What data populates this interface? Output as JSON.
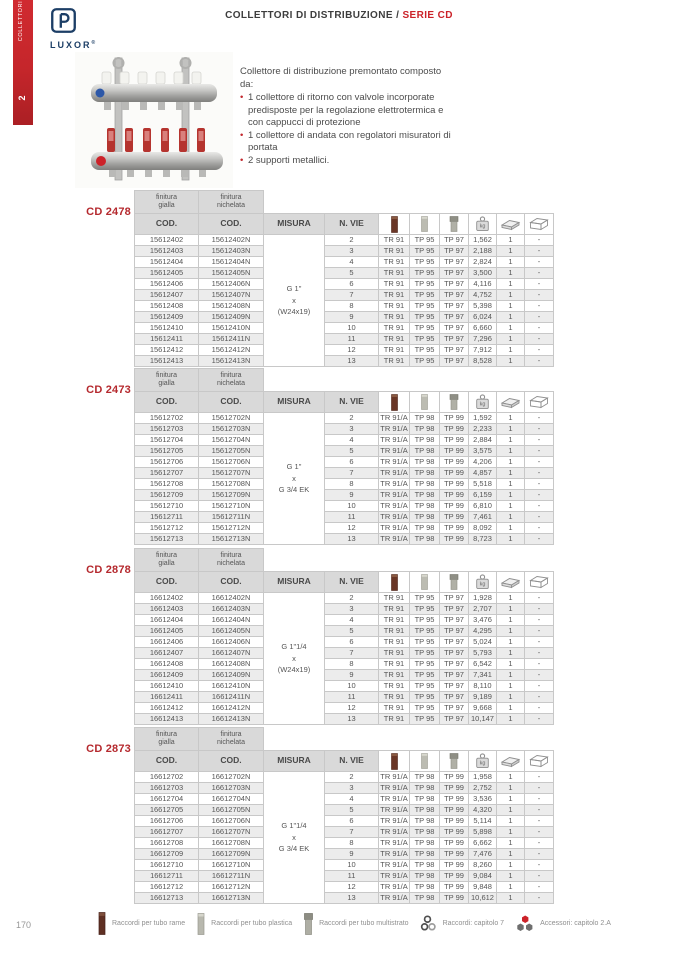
{
  "sidebar": {
    "chapter": "2",
    "label": "COLLETTORI"
  },
  "brand": {
    "name": "LUXOR",
    "registered": "®"
  },
  "header": {
    "title": "COLLETTORI DI DISTRIBUZIONE /",
    "series": "SERIE CD"
  },
  "description": {
    "intro": "Collettore di distribuzione premontato composto da:",
    "bullets": [
      "1 collettore di ritorno con valvole incorporate predisposte per la regolazione elettrotermica e con cappucci di protezione",
      "1 collettore di andata con regolatori misuratori di portata",
      "2 supporti metallici."
    ]
  },
  "table_headers": {
    "finitura": "finitura",
    "gialla": "gialla",
    "nichelata": "nichelata",
    "cod": "COD.",
    "misura": "MISURA",
    "n_vie": "N. VIE",
    "weight_unit": "kg",
    "icon_columns": [
      "copper-tube-icon",
      "plastic-tube-icon",
      "multilayer-tube-icon",
      "weight-kg-icon",
      "package-icon",
      "box-icon"
    ]
  },
  "colors": {
    "brand_red": "#c2272d",
    "header_grey": "#d9d9d9",
    "stripe_grey": "#ececec",
    "logo_navy": "#1c3e66"
  },
  "tables": [
    {
      "model": "CD 2478",
      "misura": [
        "G 1\"",
        "x",
        "(W24x19)"
      ],
      "fittings": [
        "TR 91",
        "TP 95",
        "TP 97"
      ],
      "rows": [
        [
          "15612402",
          "15612402N",
          "2",
          "1,562",
          "1",
          "-"
        ],
        [
          "15612403",
          "15612403N",
          "3",
          "2,188",
          "1",
          "-"
        ],
        [
          "15612404",
          "15612404N",
          "4",
          "2,824",
          "1",
          "-"
        ],
        [
          "15612405",
          "15612405N",
          "5",
          "3,500",
          "1",
          "-"
        ],
        [
          "15612406",
          "15612406N",
          "6",
          "4,116",
          "1",
          "-"
        ],
        [
          "15612407",
          "15612407N",
          "7",
          "4,752",
          "1",
          "-"
        ],
        [
          "15612408",
          "15612408N",
          "8",
          "5,398",
          "1",
          "-"
        ],
        [
          "15612409",
          "15612409N",
          "9",
          "6,024",
          "1",
          "-"
        ],
        [
          "15612410",
          "15612410N",
          "10",
          "6,660",
          "1",
          "-"
        ],
        [
          "15612411",
          "15612411N",
          "11",
          "7,296",
          "1",
          "-"
        ],
        [
          "15612412",
          "15612412N",
          "12",
          "7,912",
          "1",
          "-"
        ],
        [
          "15612413",
          "15612413N",
          "13",
          "8,528",
          "1",
          "-"
        ]
      ]
    },
    {
      "model": "CD 2473",
      "misura": [
        "G 1\"",
        "x",
        "G 3/4 EK"
      ],
      "fittings": [
        "TR 91/A",
        "TP 98",
        "TP 99"
      ],
      "rows": [
        [
          "15612702",
          "15612702N",
          "2",
          "1,592",
          "1",
          "-"
        ],
        [
          "15612703",
          "15612703N",
          "3",
          "2,233",
          "1",
          "-"
        ],
        [
          "15612704",
          "15612704N",
          "4",
          "2,884",
          "1",
          "-"
        ],
        [
          "15612705",
          "15612705N",
          "5",
          "3,575",
          "1",
          "-"
        ],
        [
          "15612706",
          "15612706N",
          "6",
          "4,206",
          "1",
          "-"
        ],
        [
          "15612707",
          "15612707N",
          "7",
          "4,857",
          "1",
          "-"
        ],
        [
          "15612708",
          "15612708N",
          "8",
          "5,518",
          "1",
          "-"
        ],
        [
          "15612709",
          "15612709N",
          "9",
          "6,159",
          "1",
          "-"
        ],
        [
          "15612710",
          "15612710N",
          "10",
          "6,810",
          "1",
          "-"
        ],
        [
          "15612711",
          "15612711N",
          "11",
          "7,461",
          "1",
          "-"
        ],
        [
          "15612712",
          "15612712N",
          "12",
          "8,092",
          "1",
          "-"
        ],
        [
          "15612713",
          "15612713N",
          "13",
          "8,723",
          "1",
          "-"
        ]
      ]
    },
    {
      "model": "CD 2878",
      "misura": [
        "G 1\"1/4",
        "x",
        "(W24x19)"
      ],
      "fittings": [
        "TR 91",
        "TP 95",
        "TP 97"
      ],
      "rows": [
        [
          "16612402",
          "16612402N",
          "2",
          "1,928",
          "1",
          "-"
        ],
        [
          "16612403",
          "16612403N",
          "3",
          "2,707",
          "1",
          "-"
        ],
        [
          "16612404",
          "16612404N",
          "4",
          "3,476",
          "1",
          "-"
        ],
        [
          "16612405",
          "16612405N",
          "5",
          "4,295",
          "1",
          "-"
        ],
        [
          "16612406",
          "16612406N",
          "6",
          "5,024",
          "1",
          "-"
        ],
        [
          "16612407",
          "16612407N",
          "7",
          "5,793",
          "1",
          "-"
        ],
        [
          "16612408",
          "16612408N",
          "8",
          "6,542",
          "1",
          "-"
        ],
        [
          "16612409",
          "16612409N",
          "9",
          "7,341",
          "1",
          "-"
        ],
        [
          "16612410",
          "16612410N",
          "10",
          "8,110",
          "1",
          "-"
        ],
        [
          "16612411",
          "16612411N",
          "11",
          "9,189",
          "1",
          "-"
        ],
        [
          "16612412",
          "16612412N",
          "12",
          "9,668",
          "1",
          "-"
        ],
        [
          "16612413",
          "16612413N",
          "13",
          "10,147",
          "1",
          "-"
        ]
      ]
    },
    {
      "model": "CD 2873",
      "misura": [
        "G 1\"1/4",
        "x",
        "G 3/4 EK"
      ],
      "fittings": [
        "TR 91/A",
        "TP 98",
        "TP 99"
      ],
      "rows": [
        [
          "16612702",
          "16612702N",
          "2",
          "1,958",
          "1",
          "-"
        ],
        [
          "16612703",
          "16612703N",
          "3",
          "2,752",
          "1",
          "-"
        ],
        [
          "16612704",
          "16612704N",
          "4",
          "3,536",
          "1",
          "-"
        ],
        [
          "16612705",
          "16612705N",
          "5",
          "4,320",
          "1",
          "-"
        ],
        [
          "16612706",
          "16612706N",
          "6",
          "5,114",
          "1",
          "-"
        ],
        [
          "16612707",
          "16612707N",
          "7",
          "5,898",
          "1",
          "-"
        ],
        [
          "16612708",
          "16612708N",
          "8",
          "6,662",
          "1",
          "-"
        ],
        [
          "16612709",
          "16612709N",
          "9",
          "7,476",
          "1",
          "-"
        ],
        [
          "16612710",
          "16612710N",
          "10",
          "8,260",
          "1",
          "-"
        ],
        [
          "16612711",
          "16612711N",
          "11",
          "9,084",
          "1",
          "-"
        ],
        [
          "16612712",
          "16612712N",
          "12",
          "9,848",
          "1",
          "-"
        ],
        [
          "16612713",
          "16612713N",
          "13",
          "10,612",
          "1",
          "-"
        ]
      ]
    }
  ],
  "footer": {
    "page_number": "170",
    "legend": [
      {
        "icon": "copper-tube-lg-icon",
        "label": "Raccordi per tubo rame"
      },
      {
        "icon": "plastic-tube-lg-icon",
        "label": "Raccordi per tubo plastica"
      },
      {
        "icon": "multilayer-tube-lg-icon",
        "label": "Raccordi per tubo multistrato"
      },
      {
        "icon": "rings-icon",
        "label": "Raccordi: capitolo 7"
      },
      {
        "icon": "accessories-icon",
        "label": "Accessori: capitolo 2.A"
      }
    ]
  }
}
